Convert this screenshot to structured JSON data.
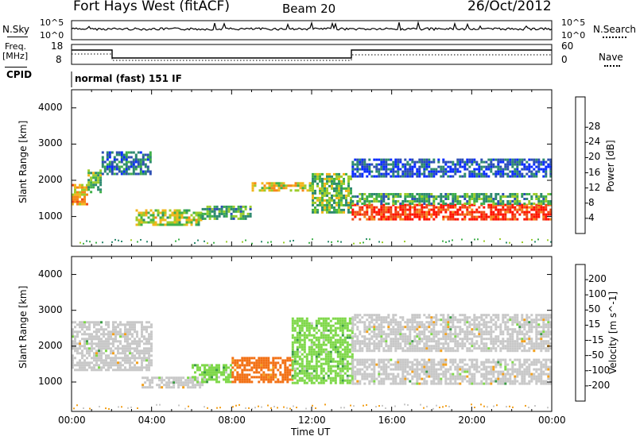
{
  "header": {
    "title": "Fort Hays West (fitACF)",
    "beam": "Beam 20",
    "date": "26/Oct/2012"
  },
  "top_panels": {
    "nsky_label": "N.Sky",
    "nsearch_label": "N.Search",
    "noise_left_ticks": [
      "10^5",
      "10^0"
    ],
    "noise_right_ticks": [
      "10^5",
      "10^0"
    ],
    "freq_label_1": "Freq.",
    "freq_label_2": "[MHz]",
    "freq_ticks": [
      "18",
      "8"
    ],
    "nave_label": "Nave",
    "nave_ticks": [
      "60",
      "0"
    ],
    "cpid_label": "CPID",
    "cpid_text": "normal (fast) 151 IF"
  },
  "chart_data": [
    {
      "type": "heatmap",
      "name": "power",
      "xlabel": "",
      "ylabel": "Slant Range [km]",
      "xlim": [
        0,
        24
      ],
      "ylim": [
        180,
        4500
      ],
      "yticks": [
        "1000",
        "2000",
        "3000",
        "4000"
      ],
      "colorbar": {
        "label": "Power [dB]",
        "ticks": [
          "4",
          "8",
          "12",
          "16",
          "20",
          "24",
          "28"
        ],
        "colors": [
          "#0a2cff",
          "#2d4fb4",
          "#2e8a6f",
          "#3fb04a",
          "#9ccc2b",
          "#f2b61c",
          "#f6861a",
          "#f04a16",
          "#ff1200"
        ]
      },
      "bands": [
        {
          "t0": 0.0,
          "t1": 0.8,
          "r0": 1350,
          "r1": 1900,
          "v": 20
        },
        {
          "t0": 0.8,
          "t1": 1.5,
          "r0": 1650,
          "r1": 2300,
          "v": 14
        },
        {
          "t0": 1.5,
          "t1": 4.0,
          "r0": 2200,
          "r1": 2800,
          "v": 8
        },
        {
          "t0": 3.2,
          "t1": 6.5,
          "r0": 800,
          "r1": 1200,
          "v": 16
        },
        {
          "t0": 6.5,
          "t1": 9.0,
          "r0": 950,
          "r1": 1300,
          "v": 12
        },
        {
          "t0": 9.0,
          "t1": 12.0,
          "r0": 1700,
          "r1": 1950,
          "v": 18
        },
        {
          "t0": 12.0,
          "t1": 14.0,
          "r0": 1100,
          "r1": 2200,
          "v": 14
        },
        {
          "t0": 14.0,
          "t1": 24.0,
          "r0": 950,
          "r1": 1350,
          "v": 27
        },
        {
          "t0": 14.0,
          "t1": 24.0,
          "r0": 1350,
          "r1": 1650,
          "v": 12
        },
        {
          "t0": 14.0,
          "t1": 24.0,
          "r0": 2100,
          "r1": 2600,
          "v": 6
        }
      ]
    },
    {
      "type": "heatmap",
      "name": "velocity",
      "xlabel": "Time UT",
      "ylabel": "Slant Range [km]",
      "xlim": [
        0,
        24
      ],
      "ylim": [
        180,
        4500
      ],
      "xticks": [
        "00:00",
        "04:00",
        "08:00",
        "12:00",
        "16:00",
        "20:00",
        "00:00"
      ],
      "yticks": [
        "1000",
        "2000",
        "3000",
        "4000"
      ],
      "colorbar": {
        "label": "Velocity [m s^-1]",
        "ticks": [
          "200",
          "100",
          "50",
          "15",
          "-15",
          "-50",
          "-100",
          "-200"
        ],
        "colors": [
          "#1f2ad0",
          "#2a6f9a",
          "#3c9b46",
          "#7fd84a",
          "#c8c8c8",
          "#f2a01c",
          "#f27014",
          "#e8230c",
          "#ff0000"
        ]
      },
      "bands": [
        {
          "t0": 0.0,
          "t1": 4.0,
          "r0": 1350,
          "r1": 2700,
          "v": 0
        },
        {
          "t0": 3.5,
          "t1": 6.5,
          "r0": 850,
          "r1": 1150,
          "v": 0
        },
        {
          "t0": 6.0,
          "t1": 8.0,
          "r0": 1000,
          "r1": 1500,
          "v": 30
        },
        {
          "t0": 8.0,
          "t1": 11.0,
          "r0": 1000,
          "r1": 1700,
          "v": -60
        },
        {
          "t0": 11.0,
          "t1": 14.0,
          "r0": 1000,
          "r1": 2800,
          "v": 30
        },
        {
          "t0": 14.0,
          "t1": 24.0,
          "r0": 950,
          "r1": 1650,
          "v": 0
        },
        {
          "t0": 14.0,
          "t1": 24.0,
          "r0": 1900,
          "r1": 2900,
          "v": 0
        }
      ]
    }
  ]
}
